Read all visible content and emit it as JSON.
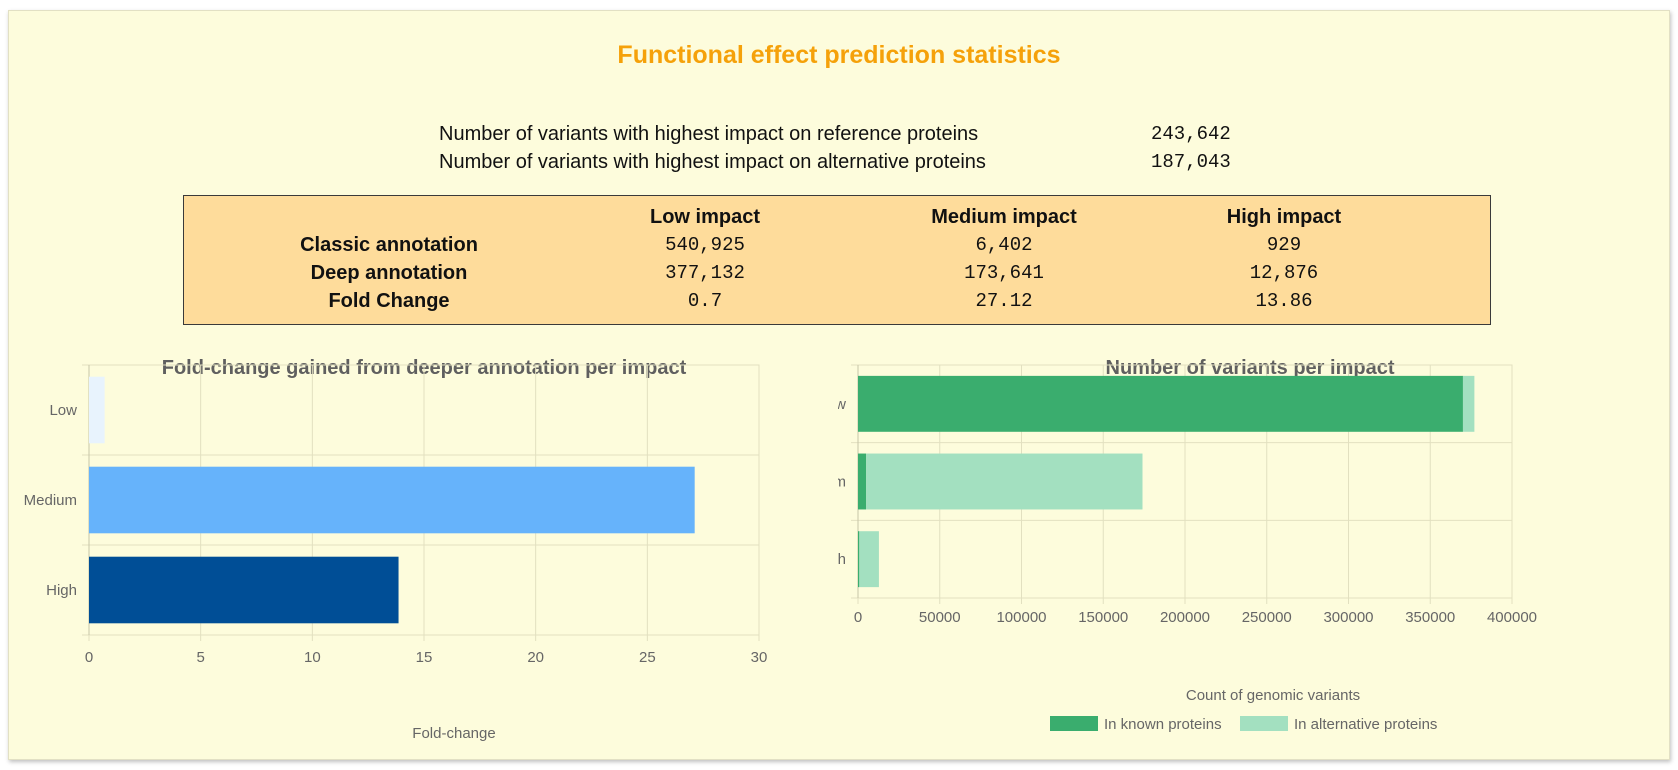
{
  "title": "Functional effect prediction statistics",
  "summary": [
    {
      "label": "Number of variants with highest impact on reference proteins",
      "value": "243,642"
    },
    {
      "label": "Number of variants with highest impact on alternative proteins",
      "value": "187,043"
    }
  ],
  "impact_table": {
    "headers": [
      "Low impact",
      "Medium impact",
      "High impact"
    ],
    "rows": [
      {
        "label": "Classic annotation",
        "values": [
          "540,925",
          "6,402",
          "929"
        ]
      },
      {
        "label": "Deep annotation",
        "values": [
          "377,132",
          "173,641",
          "12,876"
        ]
      },
      {
        "label": "Fold Change",
        "values": [
          "0.7",
          "27.12",
          "13.86"
        ]
      }
    ]
  },
  "colors": {
    "title": "#f5a10a",
    "low": "#e8f3fd",
    "medium": "#66b3fb",
    "high": "#004e96",
    "known": "#3aad6e",
    "alternative": "#a3e0c0"
  },
  "chart_data": [
    {
      "type": "bar",
      "orientation": "horizontal",
      "title": "Fold-change gained from deeper annotation per impact",
      "xlabel": "Fold-change",
      "ylabel": "",
      "categories": [
        "Low",
        "Medium",
        "High"
      ],
      "values": [
        0.7,
        27.12,
        13.86
      ],
      "xlim": [
        0,
        30
      ],
      "xticks": [
        0,
        5,
        10,
        15,
        20,
        25,
        30
      ],
      "grid": true
    },
    {
      "type": "bar",
      "orientation": "horizontal",
      "stacked": true,
      "title": "Number of variants per impact",
      "xlabel": "Count of genomic variants",
      "ylabel": "",
      "categories": [
        "Low",
        "Medium",
        "High"
      ],
      "series": [
        {
          "name": "In known proteins",
          "values": [
            370000,
            5000,
            800
          ]
        },
        {
          "name": "In alternative proteins",
          "values": [
            7000,
            169000,
            12000
          ]
        }
      ],
      "xlim": [
        0,
        400000
      ],
      "xticks": [
        0,
        50000,
        100000,
        150000,
        200000,
        250000,
        300000,
        350000,
        400000
      ],
      "legend": "bottom",
      "grid": true
    }
  ]
}
